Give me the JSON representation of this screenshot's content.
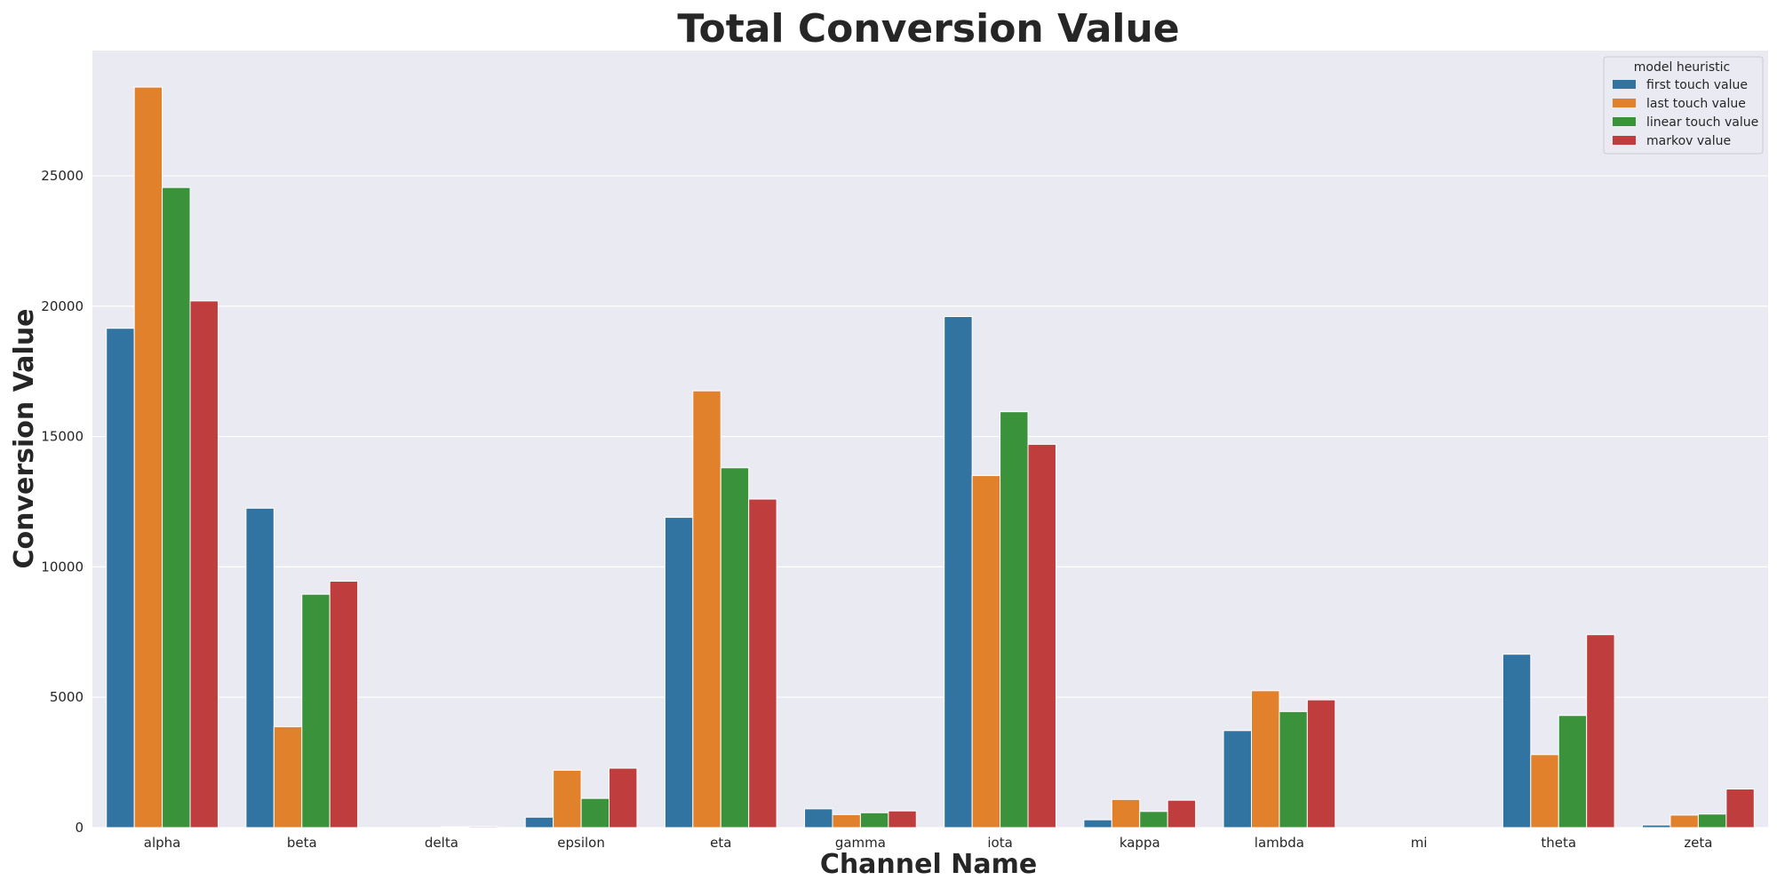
{
  "chart_data": {
    "type": "bar",
    "title": "Total Conversion Value",
    "xlabel": "Channel Name",
    "ylabel": "Conversion Value",
    "categories": [
      "alpha",
      "beta",
      "delta",
      "epsilon",
      "eta",
      "gamma",
      "iota",
      "kappa",
      "lambda",
      "mi",
      "theta",
      "zeta"
    ],
    "ylim": [
      0,
      29800
    ],
    "yticks": [
      0,
      5000,
      10000,
      15000,
      20000,
      25000
    ],
    "grid": true,
    "legend": {
      "title": "model heuristic",
      "position": "top-right"
    },
    "series": [
      {
        "name": "first touch value",
        "color": "#3274a1",
        "values": [
          19150,
          12250,
          0,
          400,
          11900,
          720,
          19600,
          300,
          3720,
          0,
          6650,
          100
        ]
      },
      {
        "name": "last touch value",
        "color": "#e1812c",
        "values": [
          28400,
          3870,
          0,
          2200,
          16750,
          500,
          13500,
          1080,
          5250,
          0,
          2800,
          480
        ]
      },
      {
        "name": "linear touch value",
        "color": "#3a923a",
        "values": [
          24550,
          8950,
          30,
          1120,
          13800,
          570,
          15950,
          620,
          4450,
          0,
          4300,
          520
        ]
      },
      {
        "name": "markov value",
        "color": "#c03d3e",
        "values": [
          20200,
          9450,
          40,
          2280,
          12600,
          640,
          14700,
          1050,
          4900,
          0,
          7400,
          1480
        ]
      }
    ]
  }
}
